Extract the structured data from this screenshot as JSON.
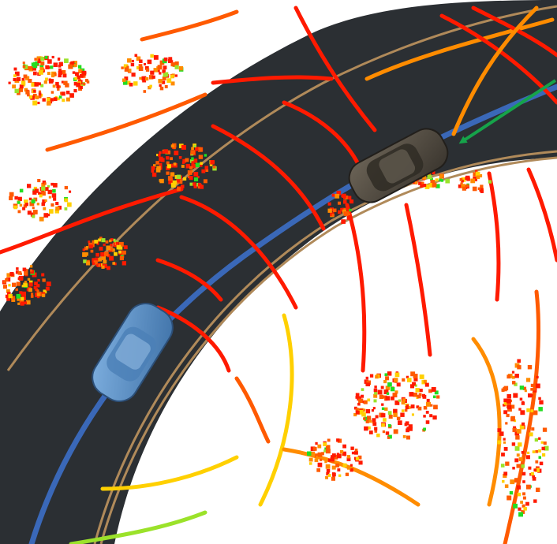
{
  "scene": {
    "background": "#ffffff",
    "road_color": "#2b2f33",
    "lane_line_color": "#b08a5a",
    "planned_path_color": "#3a68b8",
    "ego_vehicle_color": "#5b8fc7",
    "other_vehicle_color": "#4a443c",
    "annotation_arrow_color": "#16a34a",
    "lidar_scan_colors": [
      "#ff1a00",
      "#ff5a00",
      "#ff8c00",
      "#ffd000",
      "#9be22a",
      "#22dd22"
    ]
  },
  "icons": [
    "ego-car-icon",
    "other-car-icon",
    "annotation-arrow-icon"
  ]
}
